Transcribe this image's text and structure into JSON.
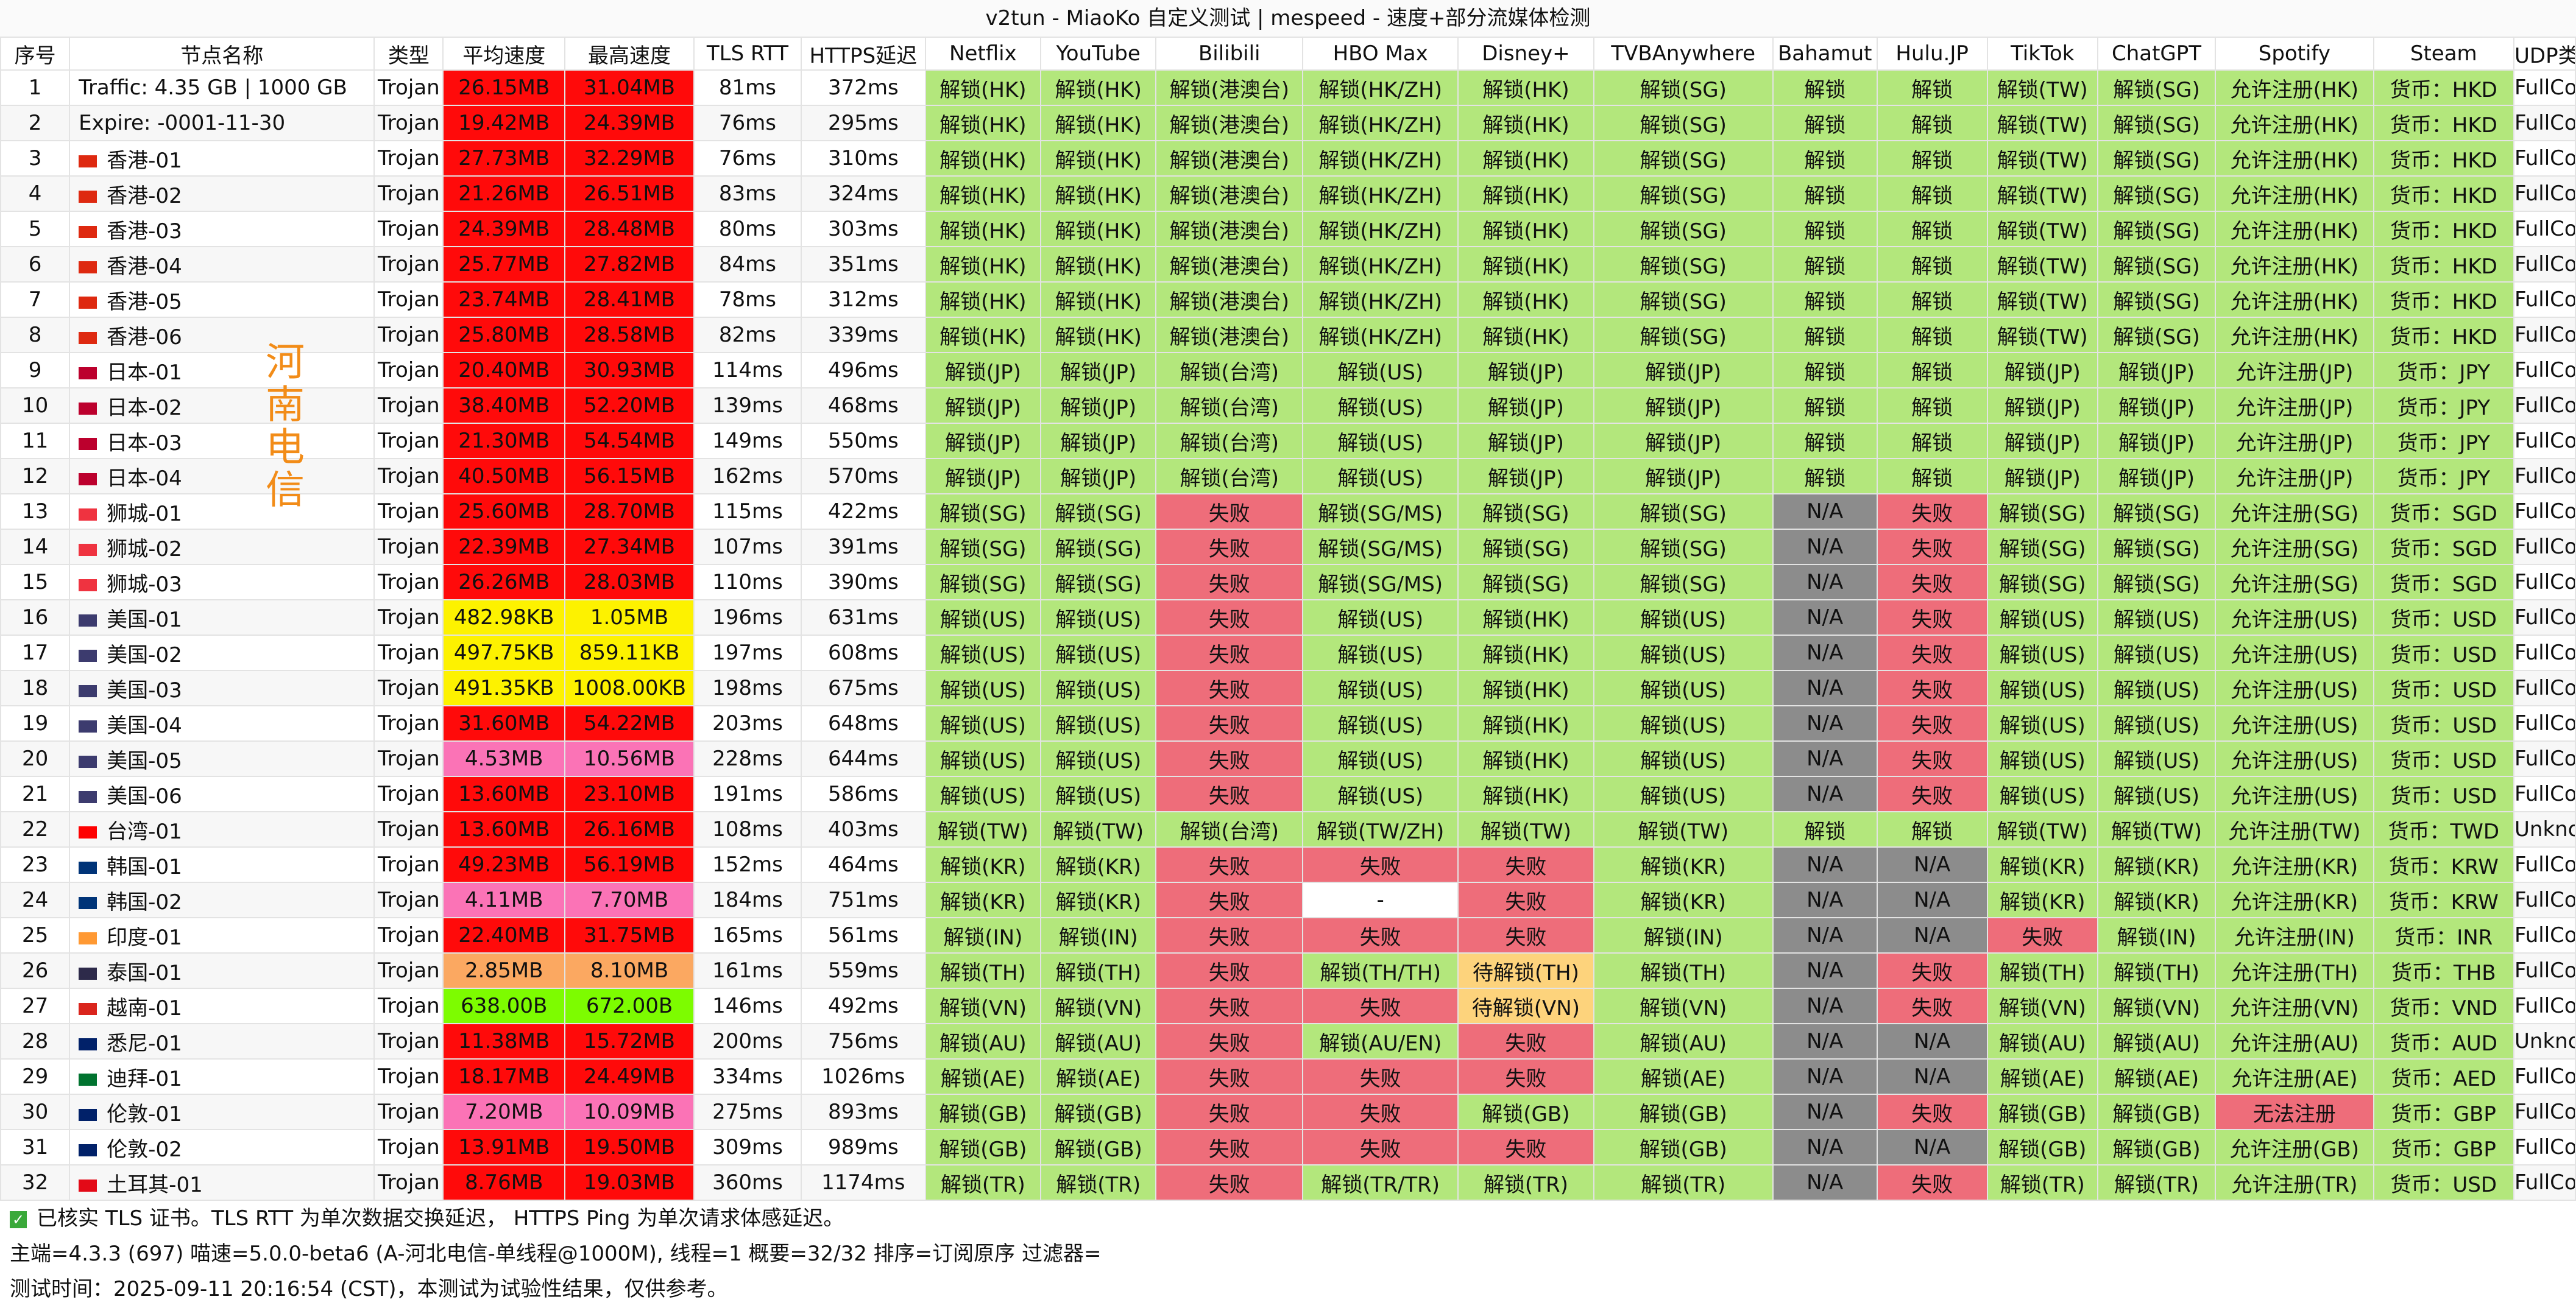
{
  "window": {
    "title": "v2tun - MiaoKo 自定义测试 | mespeed - 速度+部分流媒体检测"
  },
  "columns": [
    "序号",
    "节点名称",
    "类型",
    "平均速度",
    "最高速度",
    "TLS RTT",
    "HTTPS延迟",
    "Netflix",
    "YouTube",
    "Bilibili",
    "HBO Max",
    "Disney+",
    "TVBAnywhere",
    "Bahamut",
    "Hulu.JP",
    "TikTok",
    "ChatGPT",
    "Spotify",
    "Steam",
    "UDP类型"
  ],
  "colors": {
    "speed_red": "#ff0a0a",
    "speed_yellow": "#fdf200",
    "speed_pink": "#fb73b6",
    "speed_orange": "#fba861",
    "speed_green": "#7dfc00",
    "media_green": "#b3e77c",
    "media_red": "#ee6d7a",
    "media_gray": "#8c8c8c",
    "media_white": "#ffffff",
    "media_orange": "#fdd37c",
    "flag_hk": "#de2910",
    "flag_jp": "#bc002d",
    "flag_sg": "#ef3340",
    "flag_us": "#3c3b6e",
    "flag_tw": "#fe0000",
    "flag_kr": "#003478",
    "flag_in": "#ff9933",
    "flag_th": "#2d2a4a",
    "flag_vn": "#da251d",
    "flag_au": "#012169",
    "flag_ae": "#00732f",
    "flag_gb": "#012169",
    "flag_tr": "#e30a17"
  },
  "rows": [
    {
      "idx": "1",
      "name": "Traffic: 4.35 GB | 1000 GB",
      "type": "Trojan",
      "avg": "26.15MB",
      "max": "31.04MB",
      "sc": "red",
      "tls": "81ms",
      "https": "372ms",
      "m": [
        "解锁(HK)",
        "解锁(HK)",
        "解锁(港澳台)",
        "解锁(HK/ZH)",
        "解锁(HK)",
        "解锁(SG)",
        "解锁",
        "解锁",
        "解锁(TW)",
        "解锁(SG)",
        "允许注册(HK)",
        "货币：HKD"
      ],
      "udp": "FullCone"
    },
    {
      "idx": "2",
      "name": "Expire: -0001-11-30",
      "type": "Trojan",
      "avg": "19.42MB",
      "max": "24.39MB",
      "sc": "red",
      "tls": "76ms",
      "https": "295ms",
      "m": [
        "解锁(HK)",
        "解锁(HK)",
        "解锁(港澳台)",
        "解锁(HK/ZH)",
        "解锁(HK)",
        "解锁(SG)",
        "解锁",
        "解锁",
        "解锁(TW)",
        "解锁(SG)",
        "允许注册(HK)",
        "货币：HKD"
      ],
      "udp": "FullCone"
    },
    {
      "idx": "3",
      "flag": "hk",
      "name": "香港-01",
      "type": "Trojan",
      "avg": "27.73MB",
      "max": "32.29MB",
      "sc": "red",
      "tls": "76ms",
      "https": "310ms",
      "m": [
        "解锁(HK)",
        "解锁(HK)",
        "解锁(港澳台)",
        "解锁(HK/ZH)",
        "解锁(HK)",
        "解锁(SG)",
        "解锁",
        "解锁",
        "解锁(TW)",
        "解锁(SG)",
        "允许注册(HK)",
        "货币：HKD"
      ],
      "udp": "FullCone"
    },
    {
      "idx": "4",
      "flag": "hk",
      "name": "香港-02",
      "type": "Trojan",
      "avg": "21.26MB",
      "max": "26.51MB",
      "sc": "red",
      "tls": "83ms",
      "https": "324ms",
      "m": [
        "解锁(HK)",
        "解锁(HK)",
        "解锁(港澳台)",
        "解锁(HK/ZH)",
        "解锁(HK)",
        "解锁(SG)",
        "解锁",
        "解锁",
        "解锁(TW)",
        "解锁(SG)",
        "允许注册(HK)",
        "货币：HKD"
      ],
      "udp": "FullCone"
    },
    {
      "idx": "5",
      "flag": "hk",
      "name": "香港-03",
      "type": "Trojan",
      "avg": "24.39MB",
      "max": "28.48MB",
      "sc": "red",
      "tls": "80ms",
      "https": "303ms",
      "m": [
        "解锁(HK)",
        "解锁(HK)",
        "解锁(港澳台)",
        "解锁(HK/ZH)",
        "解锁(HK)",
        "解锁(SG)",
        "解锁",
        "解锁",
        "解锁(TW)",
        "解锁(SG)",
        "允许注册(HK)",
        "货币：HKD"
      ],
      "udp": "FullCone"
    },
    {
      "idx": "6",
      "flag": "hk",
      "name": "香港-04",
      "type": "Trojan",
      "avg": "25.77MB",
      "max": "27.82MB",
      "sc": "red",
      "tls": "84ms",
      "https": "351ms",
      "m": [
        "解锁(HK)",
        "解锁(HK)",
        "解锁(港澳台)",
        "解锁(HK/ZH)",
        "解锁(HK)",
        "解锁(SG)",
        "解锁",
        "解锁",
        "解锁(TW)",
        "解锁(SG)",
        "允许注册(HK)",
        "货币：HKD"
      ],
      "udp": "FullCone"
    },
    {
      "idx": "7",
      "flag": "hk",
      "name": "香港-05",
      "type": "Trojan",
      "avg": "23.74MB",
      "max": "28.41MB",
      "sc": "red",
      "tls": "78ms",
      "https": "312ms",
      "m": [
        "解锁(HK)",
        "解锁(HK)",
        "解锁(港澳台)",
        "解锁(HK/ZH)",
        "解锁(HK)",
        "解锁(SG)",
        "解锁",
        "解锁",
        "解锁(TW)",
        "解锁(SG)",
        "允许注册(HK)",
        "货币：HKD"
      ],
      "udp": "FullCone"
    },
    {
      "idx": "8",
      "flag": "hk",
      "name": "香港-06",
      "type": "Trojan",
      "avg": "25.80MB",
      "max": "28.58MB",
      "sc": "red",
      "tls": "82ms",
      "https": "339ms",
      "m": [
        "解锁(HK)",
        "解锁(HK)",
        "解锁(港澳台)",
        "解锁(HK/ZH)",
        "解锁(HK)",
        "解锁(SG)",
        "解锁",
        "解锁",
        "解锁(TW)",
        "解锁(SG)",
        "允许注册(HK)",
        "货币：HKD"
      ],
      "udp": "FullCone"
    },
    {
      "idx": "9",
      "flag": "jp",
      "name": "日本-01",
      "type": "Trojan",
      "avg": "20.40MB",
      "max": "30.93MB",
      "sc": "red",
      "tls": "114ms",
      "https": "496ms",
      "m": [
        "解锁(JP)",
        "解锁(JP)",
        "解锁(台湾)",
        "解锁(US)",
        "解锁(JP)",
        "解锁(JP)",
        "解锁",
        "解锁",
        "解锁(JP)",
        "解锁(JP)",
        "允许注册(JP)",
        "货币：JPY"
      ],
      "udp": "FullCone"
    },
    {
      "idx": "10",
      "flag": "jp",
      "name": "日本-02",
      "type": "Trojan",
      "avg": "38.40MB",
      "max": "52.20MB",
      "sc": "red",
      "tls": "139ms",
      "https": "468ms",
      "m": [
        "解锁(JP)",
        "解锁(JP)",
        "解锁(台湾)",
        "解锁(US)",
        "解锁(JP)",
        "解锁(JP)",
        "解锁",
        "解锁",
        "解锁(JP)",
        "解锁(JP)",
        "允许注册(JP)",
        "货币：JPY"
      ],
      "udp": "FullCone"
    },
    {
      "idx": "11",
      "flag": "jp",
      "name": "日本-03",
      "type": "Trojan",
      "avg": "21.30MB",
      "max": "54.54MB",
      "sc": "red",
      "tls": "149ms",
      "https": "550ms",
      "m": [
        "解锁(JP)",
        "解锁(JP)",
        "解锁(台湾)",
        "解锁(US)",
        "解锁(JP)",
        "解锁(JP)",
        "解锁",
        "解锁",
        "解锁(JP)",
        "解锁(JP)",
        "允许注册(JP)",
        "货币：JPY"
      ],
      "udp": "FullCone"
    },
    {
      "idx": "12",
      "flag": "jp",
      "name": "日本-04",
      "type": "Trojan",
      "avg": "40.50MB",
      "max": "56.15MB",
      "sc": "red",
      "tls": "162ms",
      "https": "570ms",
      "m": [
        "解锁(JP)",
        "解锁(JP)",
        "解锁(台湾)",
        "解锁(US)",
        "解锁(JP)",
        "解锁(JP)",
        "解锁",
        "解锁",
        "解锁(JP)",
        "解锁(JP)",
        "允许注册(JP)",
        "货币：JPY"
      ],
      "udp": "FullCone"
    },
    {
      "idx": "13",
      "flag": "sg",
      "name": "狮城-01",
      "type": "Trojan",
      "avg": "25.60MB",
      "max": "28.70MB",
      "sc": "red",
      "tls": "115ms",
      "https": "422ms",
      "m": [
        "解锁(SG)",
        "解锁(SG)",
        "失败",
        "解锁(SG/MS)",
        "解锁(SG)",
        "解锁(SG)",
        "N/A",
        "失败",
        "解锁(SG)",
        "解锁(SG)",
        "允许注册(SG)",
        "货币：SGD"
      ],
      "udp": "FullCone"
    },
    {
      "idx": "14",
      "flag": "sg",
      "name": "狮城-02",
      "type": "Trojan",
      "avg": "22.39MB",
      "max": "27.34MB",
      "sc": "red",
      "tls": "107ms",
      "https": "391ms",
      "m": [
        "解锁(SG)",
        "解锁(SG)",
        "失败",
        "解锁(SG/MS)",
        "解锁(SG)",
        "解锁(SG)",
        "N/A",
        "失败",
        "解锁(SG)",
        "解锁(SG)",
        "允许注册(SG)",
        "货币：SGD"
      ],
      "udp": "FullCone"
    },
    {
      "idx": "15",
      "flag": "sg",
      "name": "狮城-03",
      "type": "Trojan",
      "avg": "26.26MB",
      "max": "28.03MB",
      "sc": "red",
      "tls": "110ms",
      "https": "390ms",
      "m": [
        "解锁(SG)",
        "解锁(SG)",
        "失败",
        "解锁(SG/MS)",
        "解锁(SG)",
        "解锁(SG)",
        "N/A",
        "失败",
        "解锁(SG)",
        "解锁(SG)",
        "允许注册(SG)",
        "货币：SGD"
      ],
      "udp": "FullCone"
    },
    {
      "idx": "16",
      "flag": "us",
      "name": "美国-01",
      "type": "Trojan",
      "avg": "482.98KB",
      "max": "1.05MB",
      "sc": "yellow",
      "tls": "196ms",
      "https": "631ms",
      "m": [
        "解锁(US)",
        "解锁(US)",
        "失败",
        "解锁(US)",
        "解锁(HK)",
        "解锁(US)",
        "N/A",
        "失败",
        "解锁(US)",
        "解锁(US)",
        "允许注册(US)",
        "货币：USD"
      ],
      "udp": "FullCone"
    },
    {
      "idx": "17",
      "flag": "us",
      "name": "美国-02",
      "type": "Trojan",
      "avg": "497.75KB",
      "max": "859.11KB",
      "sc": "yellow",
      "tls": "197ms",
      "https": "608ms",
      "m": [
        "解锁(US)",
        "解锁(US)",
        "失败",
        "解锁(US)",
        "解锁(HK)",
        "解锁(US)",
        "N/A",
        "失败",
        "解锁(US)",
        "解锁(US)",
        "允许注册(US)",
        "货币：USD"
      ],
      "udp": "FullCone"
    },
    {
      "idx": "18",
      "flag": "us",
      "name": "美国-03",
      "type": "Trojan",
      "avg": "491.35KB",
      "max": "1008.00KB",
      "sc": "yellow",
      "tls": "198ms",
      "https": "675ms",
      "m": [
        "解锁(US)",
        "解锁(US)",
        "失败",
        "解锁(US)",
        "解锁(HK)",
        "解锁(US)",
        "N/A",
        "失败",
        "解锁(US)",
        "解锁(US)",
        "允许注册(US)",
        "货币：USD"
      ],
      "udp": "FullCone"
    },
    {
      "idx": "19",
      "flag": "us",
      "name": "美国-04",
      "type": "Trojan",
      "avg": "31.60MB",
      "max": "54.22MB",
      "sc": "red",
      "tls": "203ms",
      "https": "648ms",
      "m": [
        "解锁(US)",
        "解锁(US)",
        "失败",
        "解锁(US)",
        "解锁(HK)",
        "解锁(US)",
        "N/A",
        "失败",
        "解锁(US)",
        "解锁(US)",
        "允许注册(US)",
        "货币：USD"
      ],
      "udp": "FullCone"
    },
    {
      "idx": "20",
      "flag": "us",
      "name": "美国-05",
      "type": "Trojan",
      "avg": "4.53MB",
      "max": "10.56MB",
      "sc": "pink",
      "tls": "228ms",
      "https": "644ms",
      "m": [
        "解锁(US)",
        "解锁(US)",
        "失败",
        "解锁(US)",
        "解锁(HK)",
        "解锁(US)",
        "N/A",
        "失败",
        "解锁(US)",
        "解锁(US)",
        "允许注册(US)",
        "货币：USD"
      ],
      "udp": "FullCone"
    },
    {
      "idx": "21",
      "flag": "us",
      "name": "美国-06",
      "type": "Trojan",
      "avg": "13.60MB",
      "max": "23.10MB",
      "sc": "red",
      "tls": "191ms",
      "https": "586ms",
      "m": [
        "解锁(US)",
        "解锁(US)",
        "失败",
        "解锁(US)",
        "解锁(HK)",
        "解锁(US)",
        "N/A",
        "失败",
        "解锁(US)",
        "解锁(US)",
        "允许注册(US)",
        "货币：USD"
      ],
      "udp": "FullCone"
    },
    {
      "idx": "22",
      "flag": "tw",
      "name": "台湾-01",
      "type": "Trojan",
      "avg": "13.60MB",
      "max": "26.16MB",
      "sc": "red",
      "tls": "108ms",
      "https": "403ms",
      "m": [
        "解锁(TW)",
        "解锁(TW)",
        "解锁(台湾)",
        "解锁(TW/ZH)",
        "解锁(TW)",
        "解锁(TW)",
        "解锁",
        "解锁",
        "解锁(TW)",
        "解锁(TW)",
        "允许注册(TW)",
        "货币：TWD"
      ],
      "udp": "Unknown"
    },
    {
      "idx": "23",
      "flag": "kr",
      "name": "韩国-01",
      "type": "Trojan",
      "avg": "49.23MB",
      "max": "56.19MB",
      "sc": "red",
      "tls": "152ms",
      "https": "464ms",
      "m": [
        "解锁(KR)",
        "解锁(KR)",
        "失败",
        "失败",
        "失败",
        "解锁(KR)",
        "N/A",
        "N/A",
        "解锁(KR)",
        "解锁(KR)",
        "允许注册(KR)",
        "货币：KRW"
      ],
      "udp": "FullCone"
    },
    {
      "idx": "24",
      "flag": "kr",
      "name": "韩国-02",
      "type": "Trojan",
      "avg": "4.11MB",
      "max": "7.70MB",
      "sc": "pink",
      "tls": "184ms",
      "https": "751ms",
      "m": [
        "解锁(KR)",
        "解锁(KR)",
        "失败",
        "-",
        "失败",
        "解锁(KR)",
        "N/A",
        "N/A",
        "解锁(KR)",
        "解锁(KR)",
        "允许注册(KR)",
        "货币：KRW"
      ],
      "udp": "FullCone"
    },
    {
      "idx": "25",
      "flag": "in",
      "name": "印度-01",
      "type": "Trojan",
      "avg": "22.40MB",
      "max": "31.75MB",
      "sc": "red",
      "tls": "165ms",
      "https": "561ms",
      "m": [
        "解锁(IN)",
        "解锁(IN)",
        "失败",
        "失败",
        "失败",
        "解锁(IN)",
        "N/A",
        "N/A",
        "失败",
        "解锁(IN)",
        "允许注册(IN)",
        "货币：INR"
      ],
      "udp": "FullCone"
    },
    {
      "idx": "26",
      "flag": "th",
      "name": "泰国-01",
      "type": "Trojan",
      "avg": "2.85MB",
      "max": "8.10MB",
      "sc": "orange",
      "tls": "161ms",
      "https": "559ms",
      "m": [
        "解锁(TH)",
        "解锁(TH)",
        "失败",
        "解锁(TH/TH)",
        "待解锁(TH)",
        "解锁(TH)",
        "N/A",
        "失败",
        "解锁(TH)",
        "解锁(TH)",
        "允许注册(TH)",
        "货币：THB"
      ],
      "udp": "FullCone"
    },
    {
      "idx": "27",
      "flag": "vn",
      "name": "越南-01",
      "type": "Trojan",
      "avg": "638.00B",
      "max": "672.00B",
      "sc": "green",
      "tls": "146ms",
      "https": "492ms",
      "m": [
        "解锁(VN)",
        "解锁(VN)",
        "失败",
        "失败",
        "待解锁(VN)",
        "解锁(VN)",
        "N/A",
        "失败",
        "解锁(VN)",
        "解锁(VN)",
        "允许注册(VN)",
        "货币：VND"
      ],
      "udp": "FullCone"
    },
    {
      "idx": "28",
      "flag": "au",
      "name": "悉尼-01",
      "type": "Trojan",
      "avg": "11.38MB",
      "max": "15.72MB",
      "sc": "red",
      "tls": "200ms",
      "https": "756ms",
      "m": [
        "解锁(AU)",
        "解锁(AU)",
        "失败",
        "解锁(AU/EN)",
        "失败",
        "解锁(AU)",
        "N/A",
        "N/A",
        "解锁(AU)",
        "解锁(AU)",
        "允许注册(AU)",
        "货币：AUD"
      ],
      "udp": "Unknown"
    },
    {
      "idx": "29",
      "flag": "ae",
      "name": "迪拜-01",
      "type": "Trojan",
      "avg": "18.17MB",
      "max": "24.49MB",
      "sc": "red",
      "tls": "334ms",
      "https": "1026ms",
      "m": [
        "解锁(AE)",
        "解锁(AE)",
        "失败",
        "失败",
        "失败",
        "解锁(AE)",
        "N/A",
        "N/A",
        "解锁(AE)",
        "解锁(AE)",
        "允许注册(AE)",
        "货币：AED"
      ],
      "udp": "FullCone"
    },
    {
      "idx": "30",
      "flag": "gb",
      "name": "伦敦-01",
      "type": "Trojan",
      "avg": "7.20MB",
      "max": "10.09MB",
      "sc": "pink",
      "tls": "275ms",
      "https": "893ms",
      "m": [
        "解锁(GB)",
        "解锁(GB)",
        "失败",
        "失败",
        "解锁(GB)",
        "解锁(GB)",
        "N/A",
        "失败",
        "解锁(GB)",
        "解锁(GB)",
        "无法注册",
        "货币：GBP"
      ],
      "udp": "FullCone"
    },
    {
      "idx": "31",
      "flag": "gb",
      "name": "伦敦-02",
      "type": "Trojan",
      "avg": "13.91MB",
      "max": "19.50MB",
      "sc": "red",
      "tls": "309ms",
      "https": "989ms",
      "m": [
        "解锁(GB)",
        "解锁(GB)",
        "失败",
        "失败",
        "失败",
        "解锁(GB)",
        "N/A",
        "N/A",
        "解锁(GB)",
        "解锁(GB)",
        "允许注册(GB)",
        "货币：GBP"
      ],
      "udp": "FullCone"
    },
    {
      "idx": "32",
      "flag": "tr",
      "name": "土耳其-01",
      "type": "Trojan",
      "avg": "8.76MB",
      "max": "19.03MB",
      "sc": "red",
      "tls": "360ms",
      "https": "1174ms",
      "m": [
        "解锁(TR)",
        "解锁(TR)",
        "失败",
        "解锁(TR/TR)",
        "解锁(TR)",
        "解锁(TR)",
        "N/A",
        "失败",
        "解锁(TR)",
        "解锁(TR)",
        "允许注册(TR)",
        "货币：USD"
      ],
      "udp": "FullCone"
    }
  ],
  "footer": {
    "tls_note": "已核实 TLS 证书。TLS RTT 为单次数据交换延迟， HTTPS Ping 为单次请求体感延迟。",
    "meta": "主端=4.3.3 (697) 喵速=5.0.0-beta6 (A-河北电信-单线程@1000M), 线程=1 概要=32/32 排序=订阅原序 过滤器=",
    "time": "测试时间：2025-09-11 20:16:54 (CST)，本测试为试验性结果，仅供参考。"
  },
  "watermark": {
    "side_text": "河南电信"
  }
}
